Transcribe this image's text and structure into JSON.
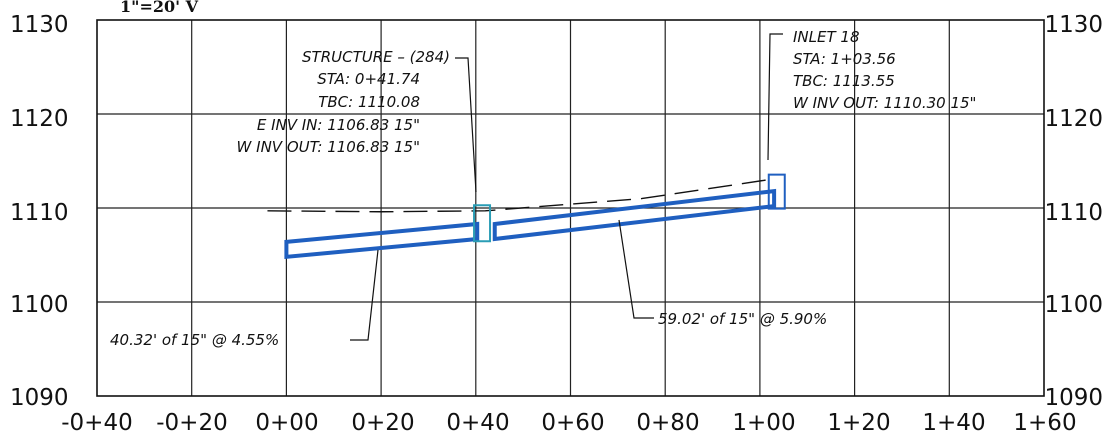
{
  "scale_label": "1\"=20' V",
  "chart_data": {
    "type": "line",
    "x_ticks": [
      "-0+40",
      "-0+20",
      "0+00",
      "0+20",
      "0+40",
      "0+60",
      "0+80",
      "1+00",
      "1+20",
      "1+40",
      "1+60"
    ],
    "y_ticks_left": [
      "1130",
      "1120",
      "1110",
      "1100",
      "1090"
    ],
    "y_ticks_right": [
      "1130",
      "1120",
      "1110",
      "1100",
      "1090"
    ],
    "xlim": [
      -40,
      160
    ],
    "ylim": [
      1090,
      1130
    ],
    "series": [
      {
        "kind": "ground-dashed",
        "points": [
          [
            -4,
            1109.7
          ],
          [
            20,
            1109.6
          ],
          [
            42,
            1109.7
          ],
          [
            75,
            1111.0
          ],
          [
            103,
            1113.1
          ]
        ]
      },
      {
        "kind": "pipe",
        "points": [
          [
            0,
            1105.6
          ],
          [
            40.3,
            1107.5
          ]
        ]
      },
      {
        "kind": "pipe",
        "points": [
          [
            44,
            1107.5
          ],
          [
            103,
            1111.0
          ]
        ]
      }
    ],
    "structures": [
      {
        "name": "STRUCTURE - (284)",
        "x": 41.74,
        "lines": [
          "STRUCTURE – (284)",
          "STA: 0+41.74",
          "TBC: 1110.08",
          "E INV IN: 1106.83 15\"",
          "W INV OUT: 1106.83 15\""
        ]
      },
      {
        "name": "INLET 18",
        "x": 103.56,
        "lines": [
          "INLET 18",
          "STA: 1+03.56",
          "TBC: 1113.55",
          "W INV OUT: 1110.30 15\""
        ]
      }
    ],
    "pipe_labels": [
      "40.32' of 15\" @ 4.55%",
      "59.02' of 15\" @ 5.90%"
    ]
  }
}
